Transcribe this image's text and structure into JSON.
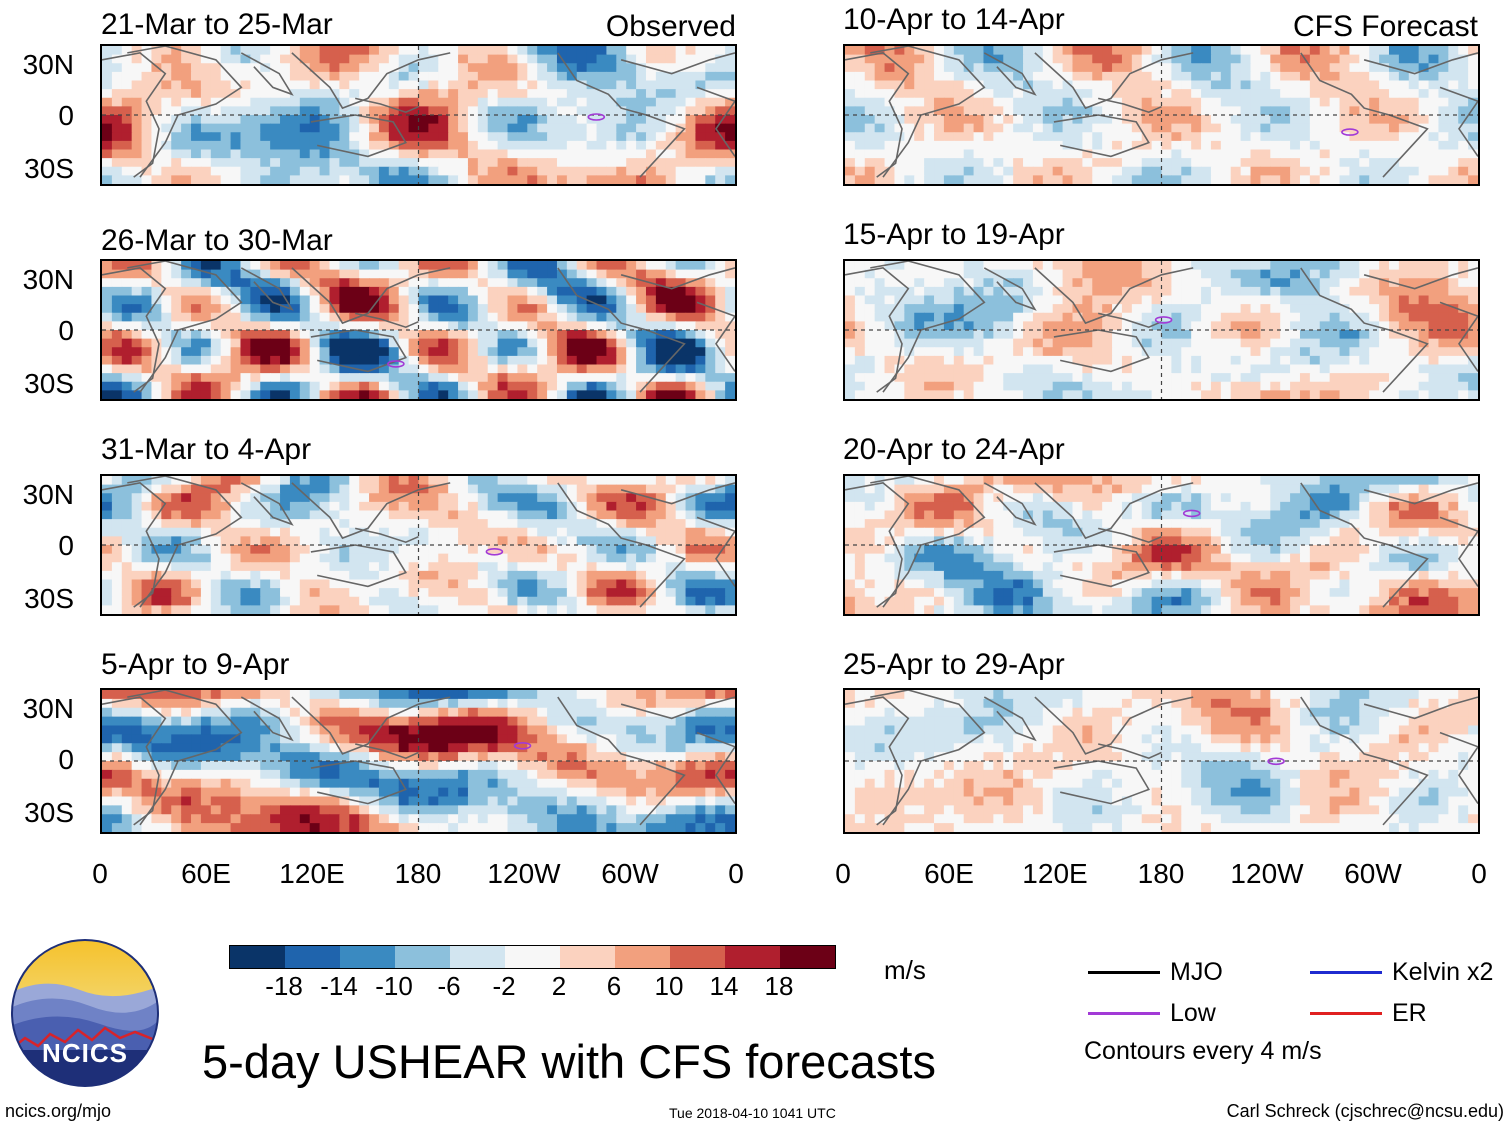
{
  "figure_title": "5-day USHEAR with CFS forecasts",
  "tags": {
    "observed": "Observed",
    "forecast": "CFS Forecast"
  },
  "chart_data": {
    "type": "heatmap",
    "title": "5-day USHEAR with CFS forecasts",
    "units": "m/s",
    "x_ticks": [
      "0",
      "60E",
      "120E",
      "180",
      "120W",
      "60W",
      "0"
    ],
    "y_ticks": [
      "30N",
      "0",
      "30S"
    ],
    "colorbar_ticks": [
      "-18",
      "-14",
      "-10",
      "-6",
      "-2",
      "2",
      "6",
      "10",
      "14",
      "18"
    ],
    "colorbar_colors": [
      "#0a3468",
      "#1f64ad",
      "#3a8ac1",
      "#8cc0dc",
      "#d2e5f0",
      "#f7f7f7",
      "#fbd2bf",
      "#f2a07e",
      "#d6604d",
      "#b01f2e",
      "#6c0016"
    ],
    "panels_observed": [
      {
        "label": "21-Mar to 25-Mar",
        "seed": 11
      },
      {
        "label": "26-Mar to 30-Mar",
        "seed": 23
      },
      {
        "label": "31-Mar to 4-Apr",
        "seed": 37
      },
      {
        "label": "5-Apr to 9-Apr",
        "seed": 41
      }
    ],
    "panels_forecast": [
      {
        "label": "10-Apr to 14-Apr",
        "seed": 53
      },
      {
        "label": "15-Apr to 19-Apr",
        "seed": 67
      },
      {
        "label": "20-Apr to 24-Apr",
        "seed": 71
      },
      {
        "label": "25-Apr to 29-Apr",
        "seed": 83
      }
    ],
    "legend": [
      {
        "label": "MJO",
        "color": "#000000"
      },
      {
        "label": "Kelvin x2",
        "color": "#1f2bd0"
      },
      {
        "label": "Low",
        "color": "#a23ad6"
      },
      {
        "label": "ER",
        "color": "#e02020"
      }
    ],
    "contour_note": "Contours every 4 m/s"
  },
  "logo": {
    "text": "NCICS"
  },
  "footer": {
    "url": "ncics.org/mjo",
    "timestamp": "Tue 2018-04-10 1041 UTC",
    "credit": "Carl Schreck (cjschrec@ncsu.edu)"
  }
}
